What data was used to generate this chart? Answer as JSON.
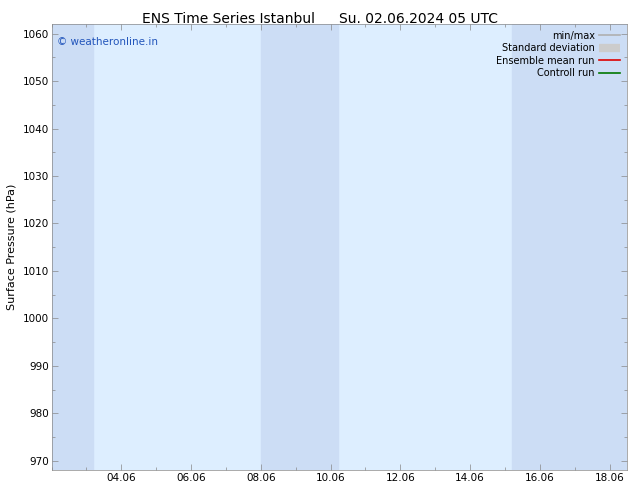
{
  "title1": "ENS Time Series Istanbul",
  "title2": "Su. 02.06.2024 05 UTC",
  "ylabel": "Surface Pressure (hPa)",
  "ylim": [
    968,
    1062
  ],
  "yticks": [
    970,
    980,
    990,
    1000,
    1010,
    1020,
    1030,
    1040,
    1050,
    1060
  ],
  "xlim": [
    2.0,
    18.5
  ],
  "xticks": [
    4,
    6,
    8,
    10,
    12,
    14,
    16,
    18
  ],
  "xticklabels": [
    "04.06",
    "06.06",
    "08.06",
    "10.06",
    "12.06",
    "14.06",
    "16.06",
    "18.06"
  ],
  "fig_bg_color": "#ffffff",
  "plot_bg_color": "#ddeeff",
  "shaded_columns": [
    {
      "x_start": 2.0,
      "x_end": 3.2
    },
    {
      "x_start": 8.0,
      "x_end": 10.2
    },
    {
      "x_start": 15.2,
      "x_end": 18.5
    }
  ],
  "shaded_color": "#ccddf5",
  "legend_items": [
    {
      "label": "min/max",
      "color": "#b0b0b0",
      "lw": 1.2
    },
    {
      "label": "Standard deviation",
      "color": "#cccccc",
      "lw": 6
    },
    {
      "label": "Ensemble mean run",
      "color": "#dd0000",
      "lw": 1.2
    },
    {
      "label": "Controll run",
      "color": "#007700",
      "lw": 1.2
    }
  ],
  "watermark": "© weatheronline.in",
  "watermark_color": "#2255bb",
  "font_size_title": 10,
  "font_size_labels": 8,
  "font_size_ticks": 7.5,
  "font_size_watermark": 7.5,
  "font_size_legend": 7
}
